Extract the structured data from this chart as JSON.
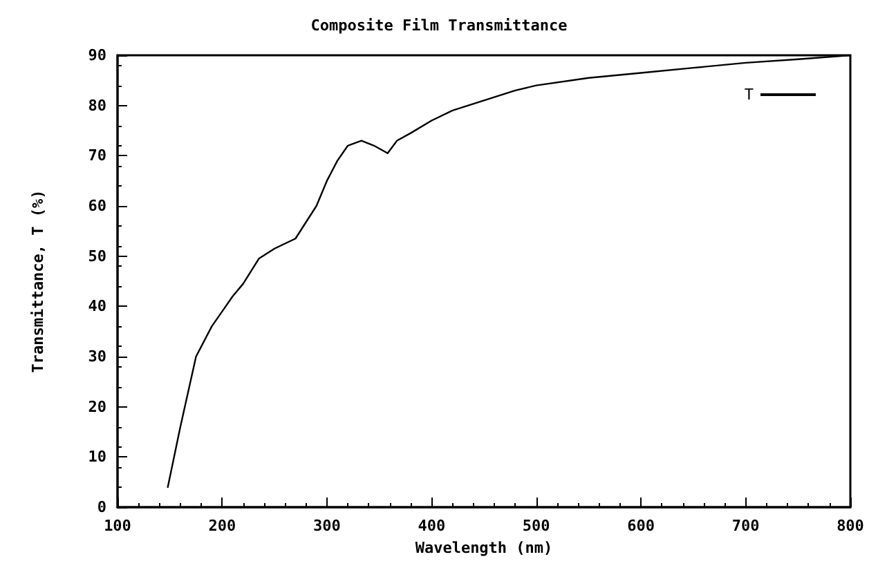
{
  "chart_data": {
    "type": "line",
    "title": "Composite Film Transmittance",
    "xlabel": "Wavelength (nm)",
    "ylabel": "Transmittance, T (%)",
    "series": [
      {
        "name": "T",
        "color": "#000000",
        "x": [
          148,
          160,
          175,
          190,
          200,
          210,
          220,
          235,
          250,
          270,
          290,
          300,
          310,
          320,
          333,
          345,
          358,
          367,
          380,
          400,
          420,
          450,
          480,
          500,
          550,
          600,
          650,
          700,
          750,
          800
        ],
        "values": [
          4,
          16,
          30,
          36,
          39,
          42,
          44.5,
          49.5,
          51.5,
          53.5,
          60,
          65,
          69,
          72,
          73,
          72,
          70.5,
          73,
          74.5,
          77,
          79,
          81,
          83,
          84,
          85.5,
          86.5,
          87.5,
          88.5,
          89.2,
          90
        ]
      }
    ],
    "xlim": [
      100,
      800
    ],
    "xticks": [
      100,
      200,
      300,
      400,
      500,
      600,
      700,
      800
    ],
    "ylim": [
      0,
      90
    ],
    "yticks": [
      0,
      10,
      20,
      30,
      40,
      50,
      60,
      70,
      80,
      90
    ],
    "grid": false,
    "legend": "top right",
    "marker": "none",
    "line_style": "solid"
  }
}
